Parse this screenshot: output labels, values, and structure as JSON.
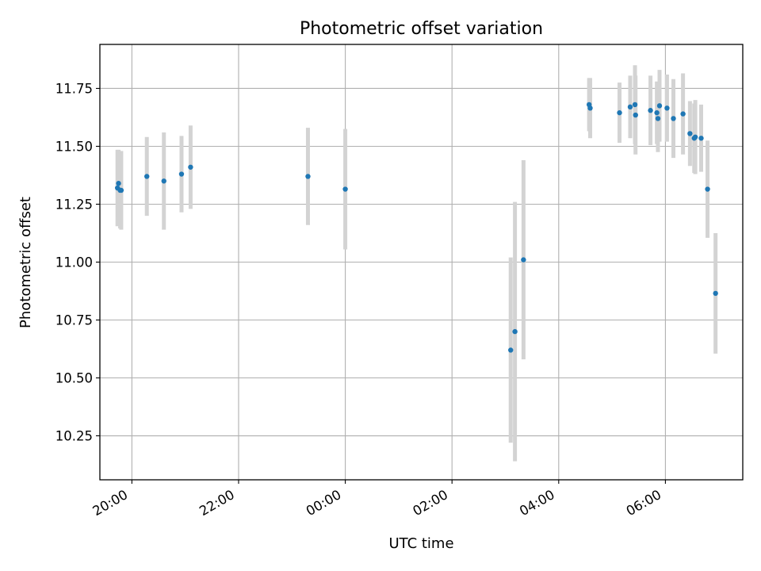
{
  "chart_data": {
    "type": "scatter",
    "title": "Photometric offset variation",
    "xlabel": "UTC time",
    "ylabel": "Photometric offset",
    "x_unit": "hours relative to 00:00 UTC",
    "x_tick_values": [
      -4,
      -2,
      0,
      2,
      4,
      6
    ],
    "x_tick_labels": [
      "20:00",
      "22:00",
      "00:00",
      "02:00",
      "04:00",
      "06:00"
    ],
    "y_tick_values": [
      10.25,
      10.5,
      10.75,
      11.0,
      11.25,
      11.5,
      11.75
    ],
    "y_tick_labels": [
      "10.25",
      "10.50",
      "10.75",
      "11.00",
      "11.25",
      "11.50",
      "11.75"
    ],
    "xlim": [
      -4.6,
      7.45
    ],
    "ylim": [
      10.06,
      11.94
    ],
    "grid": true,
    "colors": {
      "points": "#1f77b4",
      "error_bars": "#d3d3d3",
      "grid": "#b0b0b0"
    },
    "points": [
      {
        "x": -4.27,
        "y": 11.32,
        "err": 0.165
      },
      {
        "x": -4.25,
        "y": 11.34,
        "err": 0.145
      },
      {
        "x": -4.22,
        "y": 11.31,
        "err": 0.165
      },
      {
        "x": -4.2,
        "y": 11.31,
        "err": 0.17
      },
      {
        "x": -3.72,
        "y": 11.37,
        "err": 0.17
      },
      {
        "x": -3.4,
        "y": 11.35,
        "err": 0.21
      },
      {
        "x": -3.07,
        "y": 11.38,
        "err": 0.165
      },
      {
        "x": -2.9,
        "y": 11.41,
        "err": 0.18
      },
      {
        "x": -0.7,
        "y": 11.37,
        "err": 0.21
      },
      {
        "x": 0.0,
        "y": 11.315,
        "err": 0.26
      },
      {
        "x": 3.1,
        "y": 10.62,
        "err": 0.4
      },
      {
        "x": 3.18,
        "y": 10.7,
        "err": 0.56
      },
      {
        "x": 3.34,
        "y": 11.01,
        "err": 0.43
      },
      {
        "x": 4.57,
        "y": 11.68,
        "err": 0.115
      },
      {
        "x": 4.59,
        "y": 11.665,
        "err": 0.13
      },
      {
        "x": 5.14,
        "y": 11.645,
        "err": 0.13
      },
      {
        "x": 5.34,
        "y": 11.67,
        "err": 0.135
      },
      {
        "x": 5.43,
        "y": 11.68,
        "err": 0.17
      },
      {
        "x": 5.44,
        "y": 11.635,
        "err": 0.17
      },
      {
        "x": 5.72,
        "y": 11.655,
        "err": 0.15
      },
      {
        "x": 5.84,
        "y": 11.645,
        "err": 0.135
      },
      {
        "x": 5.86,
        "y": 11.62,
        "err": 0.145
      },
      {
        "x": 5.89,
        "y": 11.675,
        "err": 0.155
      },
      {
        "x": 6.03,
        "y": 11.665,
        "err": 0.145
      },
      {
        "x": 6.15,
        "y": 11.62,
        "err": 0.17
      },
      {
        "x": 6.33,
        "y": 11.64,
        "err": 0.175
      },
      {
        "x": 6.46,
        "y": 11.555,
        "err": 0.14
      },
      {
        "x": 6.54,
        "y": 11.535,
        "err": 0.15
      },
      {
        "x": 6.56,
        "y": 11.54,
        "err": 0.16
      },
      {
        "x": 6.67,
        "y": 11.535,
        "err": 0.145
      },
      {
        "x": 6.79,
        "y": 11.315,
        "err": 0.21
      },
      {
        "x": 6.94,
        "y": 10.865,
        "err": 0.26
      }
    ]
  }
}
